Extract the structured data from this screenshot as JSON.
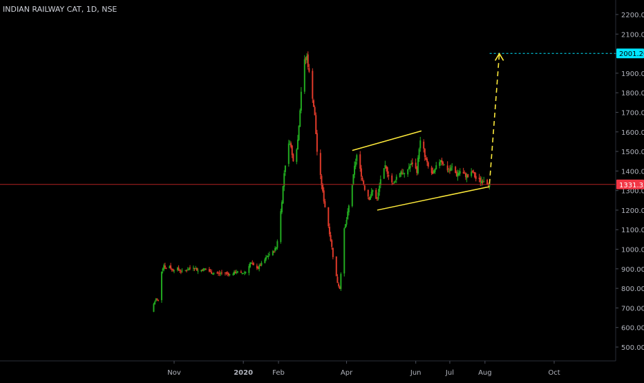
{
  "chart_data": {
    "type": "candlestick",
    "title": "INDIAN RAILWAY CAT, 1D, NSE",
    "y_axis": {
      "ticks": [
        500,
        600,
        700,
        800,
        900,
        1000,
        1100,
        1200,
        1300,
        1400,
        1500,
        1600,
        1700,
        1800,
        1900,
        2000,
        2100,
        2200
      ],
      "tick_labels": [
        "500.00",
        "600.00",
        "700.00",
        "800.00",
        "900.00",
        "1000.00",
        "1100.00",
        "1200.00",
        "1300.00",
        "1400.00",
        "1500.00",
        "1600.00",
        "1700.00",
        "1800.00",
        "1900.00",
        "2000.00",
        "2100.00",
        "2200.00"
      ],
      "position": "right"
    },
    "x_axis": {
      "ticks": [
        {
          "label": "Nov",
          "date": "2019-11-01",
          "bold": false
        },
        {
          "label": "2020",
          "date": "2020-01-01",
          "bold": true
        },
        {
          "label": "Feb",
          "date": "2020-02-01",
          "bold": false
        },
        {
          "label": "Apr",
          "date": "2020-04-01",
          "bold": false
        },
        {
          "label": "Jun",
          "date": "2020-06-01",
          "bold": false
        },
        {
          "label": "Jul",
          "date": "2020-07-01",
          "bold": false
        },
        {
          "label": "Aug",
          "date": "2020-08-01",
          "bold": false
        },
        {
          "label": "Oct",
          "date": "2020-10-01",
          "bold": false
        }
      ]
    },
    "price_path": [
      [
        "2019-10-14",
        720
      ],
      [
        "2019-10-16",
        745
      ],
      [
        "2019-10-18",
        738
      ],
      [
        "2019-10-21",
        890
      ],
      [
        "2019-10-23",
        920
      ],
      [
        "2019-10-25",
        900
      ],
      [
        "2019-10-28",
        915
      ],
      [
        "2019-10-30",
        895
      ],
      [
        "2019-11-04",
        900
      ],
      [
        "2019-11-08",
        885
      ],
      [
        "2019-11-12",
        895
      ],
      [
        "2019-11-18",
        910
      ],
      [
        "2019-11-22",
        890
      ],
      [
        "2019-11-28",
        900
      ],
      [
        "2019-12-04",
        880
      ],
      [
        "2019-12-10",
        875
      ],
      [
        "2019-12-16",
        880
      ],
      [
        "2019-12-20",
        870
      ],
      [
        "2019-12-26",
        885
      ],
      [
        "2019-12-30",
        875
      ],
      [
        "2020-01-03",
        885
      ],
      [
        "2020-01-07",
        930
      ],
      [
        "2020-01-10",
        915
      ],
      [
        "2020-01-14",
        905
      ],
      [
        "2020-01-17",
        925
      ],
      [
        "2020-01-21",
        955
      ],
      [
        "2020-01-24",
        975
      ],
      [
        "2020-01-27",
        985
      ],
      [
        "2020-01-30",
        1010
      ],
      [
        "2020-02-01",
        1080
      ],
      [
        "2020-02-04",
        1250
      ],
      [
        "2020-02-06",
        1390
      ],
      [
        "2020-02-08",
        1480
      ],
      [
        "2020-02-11",
        1560
      ],
      [
        "2020-02-13",
        1480
      ],
      [
        "2020-02-15",
        1440
      ],
      [
        "2020-02-18",
        1560
      ],
      [
        "2020-02-20",
        1720
      ],
      [
        "2020-02-22",
        1900
      ],
      [
        "2020-02-24",
        1960
      ],
      [
        "2020-02-26",
        1985
      ],
      [
        "2020-02-28",
        1900
      ],
      [
        "2020-03-02",
        1780
      ],
      [
        "2020-03-04",
        1680
      ],
      [
        "2020-03-06",
        1500
      ],
      [
        "2020-03-09",
        1370
      ],
      [
        "2020-03-12",
        1250
      ],
      [
        "2020-03-16",
        1120
      ],
      [
        "2020-03-19",
        1010
      ],
      [
        "2020-03-21",
        920
      ],
      [
        "2020-03-24",
        830
      ],
      [
        "2020-03-26",
        800
      ],
      [
        "2020-03-28",
        960
      ],
      [
        "2020-03-30",
        1100
      ],
      [
        "2020-04-01",
        1150
      ],
      [
        "2020-04-03",
        1220
      ],
      [
        "2020-04-06",
        1330
      ],
      [
        "2020-04-08",
        1420
      ],
      [
        "2020-04-10",
        1480
      ],
      [
        "2020-04-14",
        1380
      ],
      [
        "2020-04-17",
        1310
      ],
      [
        "2020-04-21",
        1260
      ],
      [
        "2020-04-24",
        1300
      ],
      [
        "2020-04-28",
        1250
      ],
      [
        "2020-05-01",
        1360
      ],
      [
        "2020-05-05",
        1420
      ],
      [
        "2020-05-08",
        1380
      ],
      [
        "2020-05-12",
        1330
      ],
      [
        "2020-05-15",
        1370
      ],
      [
        "2020-05-19",
        1400
      ],
      [
        "2020-05-22",
        1380
      ],
      [
        "2020-05-26",
        1420
      ],
      [
        "2020-05-29",
        1440
      ],
      [
        "2020-06-02",
        1400
      ],
      [
        "2020-06-04",
        1520
      ],
      [
        "2020-06-06",
        1580
      ],
      [
        "2020-06-09",
        1470
      ],
      [
        "2020-06-12",
        1420
      ],
      [
        "2020-06-16",
        1380
      ],
      [
        "2020-06-19",
        1420
      ],
      [
        "2020-06-23",
        1460
      ],
      [
        "2020-06-26",
        1430
      ],
      [
        "2020-06-30",
        1400
      ],
      [
        "2020-07-03",
        1420
      ],
      [
        "2020-07-07",
        1380
      ],
      [
        "2020-07-10",
        1400
      ],
      [
        "2020-07-14",
        1380
      ],
      [
        "2020-07-17",
        1370
      ],
      [
        "2020-07-21",
        1395
      ],
      [
        "2020-07-24",
        1360
      ],
      [
        "2020-07-28",
        1350
      ],
      [
        "2020-07-31",
        1355
      ],
      [
        "2020-08-03",
        1340
      ],
      [
        "2020-08-05",
        1331.35
      ]
    ],
    "current_price": {
      "value": 1331.35,
      "label": "1331.35",
      "color": "#f23645"
    },
    "target_price": {
      "value": 2001.2,
      "label": "2001.20",
      "color": "#00e5ff"
    },
    "annotations": {
      "channel_upper": {
        "from": [
          "2020-04-06",
          1505
        ],
        "to": [
          "2020-06-06",
          1605
        ]
      },
      "channel_lower": {
        "from": [
          "2020-04-28",
          1200
        ],
        "to": [
          "2020-08-05",
          1320
        ]
      },
      "projection": {
        "from": [
          "2020-08-05",
          1335
        ],
        "to": [
          "2020-08-10",
          2000
        ],
        "style": "dashed"
      }
    },
    "colors": {
      "background": "#000000",
      "up": "#22ab20",
      "down": "#e03a2a",
      "grid": "none",
      "pattern": "#ffeb3b",
      "axis_text": "#b2b5be"
    },
    "grid": false,
    "legend": "none"
  }
}
